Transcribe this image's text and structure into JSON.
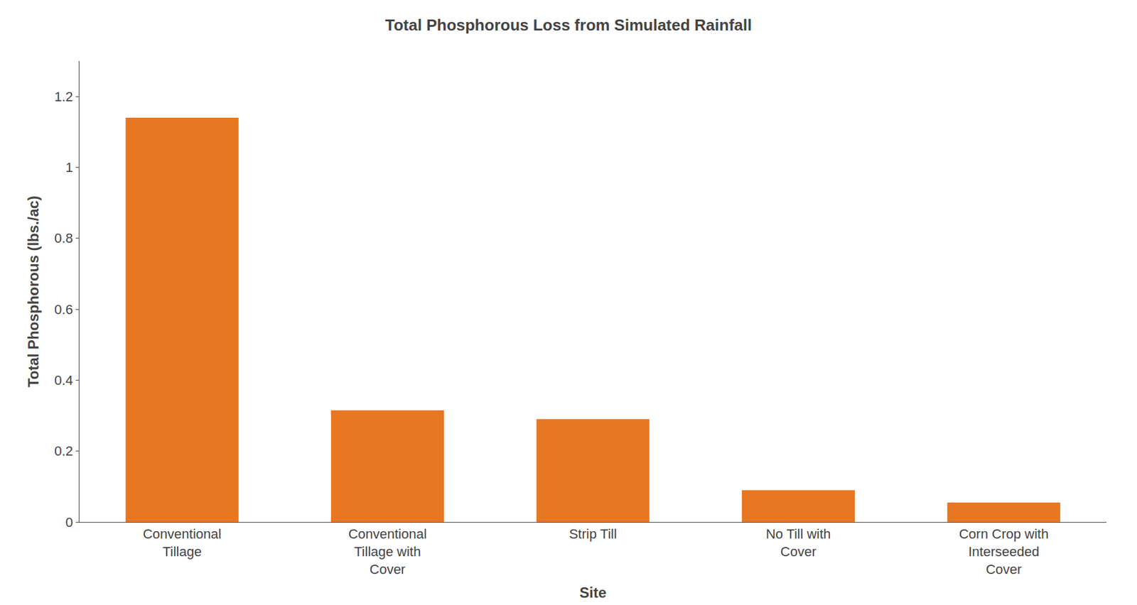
{
  "chart_data": {
    "type": "bar",
    "title": "Total Phosphorous Loss from Simulated Rainfall",
    "xlabel": "Site",
    "ylabel": "Total Phosphorous (lbs./ac)",
    "categories": [
      "Conventional\nTillage",
      "Conventional\nTillage with\nCover",
      "Strip Till",
      "No Till with\nCover",
      "Corn Crop with\nInterseeded\nCover"
    ],
    "values": [
      1.14,
      0.315,
      0.29,
      0.09,
      0.055
    ],
    "color": "#E87722",
    "ylim": [
      0,
      1.3
    ],
    "yticks": [
      0,
      0.2,
      0.4,
      0.6,
      0.8,
      1,
      1.2
    ],
    "grid": false
  }
}
